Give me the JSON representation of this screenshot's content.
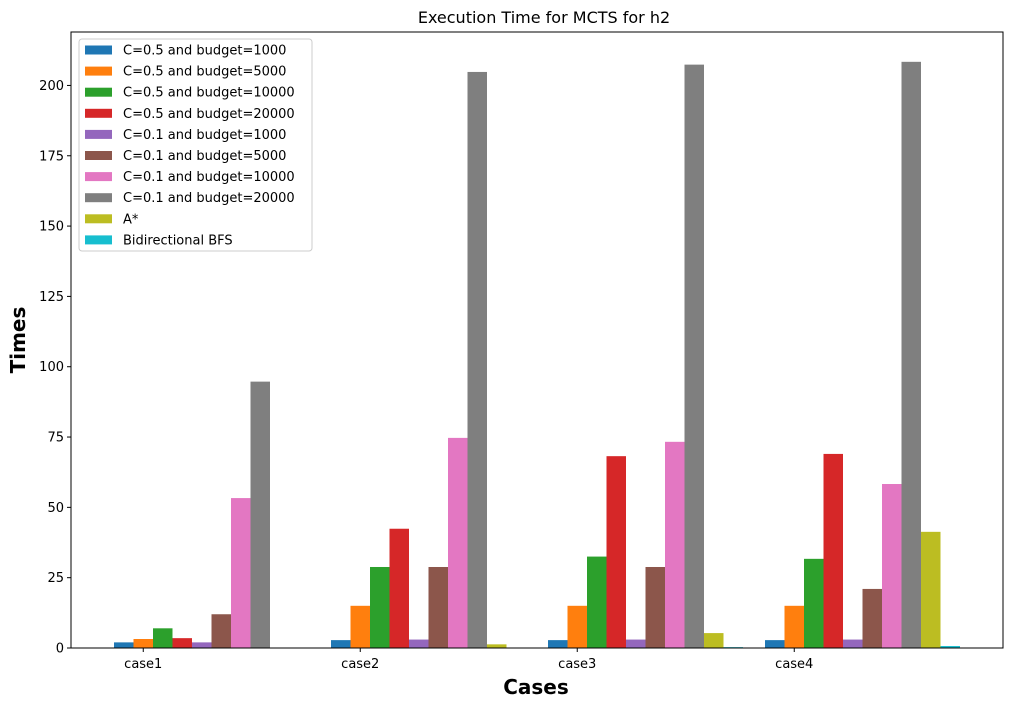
{
  "chart_data": {
    "type": "bar",
    "title": "Execution Time for MCTS for h2",
    "xlabel": "Cases",
    "ylabel": "Times",
    "categories": [
      "case1",
      "case2",
      "case3",
      "case4"
    ],
    "ylim": [
      0,
      219
    ],
    "yticks": [
      0,
      25,
      50,
      75,
      100,
      125,
      150,
      175,
      200
    ],
    "legend_position": "top-left",
    "grid": false,
    "series": [
      {
        "name": "C=0.5 and budget=1000",
        "color": "#1f77b4",
        "values": [
          2.0,
          2.8,
          2.8,
          2.8
        ]
      },
      {
        "name": "C=0.5 and budget=5000",
        "color": "#ff7f0e",
        "values": [
          3.2,
          15.0,
          15.0,
          15.0
        ]
      },
      {
        "name": "C=0.5 and budget=10000",
        "color": "#2ca02c",
        "values": [
          7.0,
          28.8,
          32.5,
          31.7
        ]
      },
      {
        "name": "C=0.5 and budget=20000",
        "color": "#d62728",
        "values": [
          3.5,
          42.4,
          68.2,
          69.0
        ]
      },
      {
        "name": "C=0.1 and budget=1000",
        "color": "#9467bd",
        "values": [
          2.0,
          3.0,
          3.0,
          3.0
        ]
      },
      {
        "name": "C=0.1 and budget=5000",
        "color": "#8c564b",
        "values": [
          12.0,
          28.8,
          28.8,
          21.0
        ]
      },
      {
        "name": "C=0.1 and budget=10000",
        "color": "#e377c2",
        "values": [
          53.3,
          74.7,
          73.3,
          58.3
        ]
      },
      {
        "name": "C=0.1 and budget=20000",
        "color": "#7f7f7f",
        "values": [
          94.7,
          204.8,
          207.4,
          208.4
        ]
      },
      {
        "name": "A*",
        "color": "#bcbd22",
        "values": [
          0,
          1.3,
          5.3,
          41.3
        ]
      },
      {
        "name": "Bidirectional BFS",
        "color": "#17becf",
        "values": [
          0,
          0,
          0.3,
          0.7
        ]
      }
    ]
  }
}
